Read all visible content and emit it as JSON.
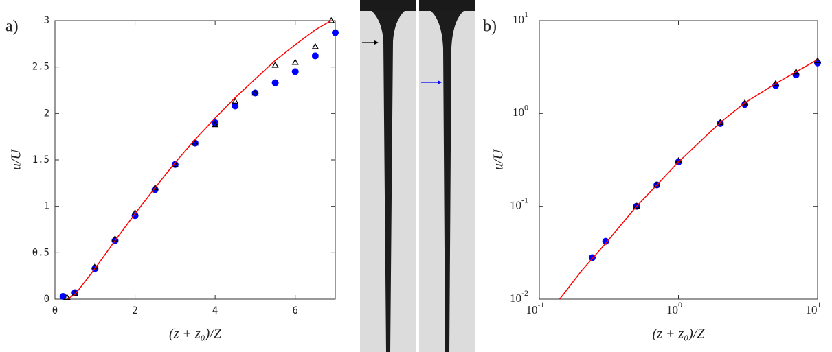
{
  "chart_data": [
    {
      "type": "scatter",
      "panel_label": "a)",
      "xlabel": "(z + z₀)/Z",
      "ylabel": "u/U",
      "xlim": [
        0,
        7
      ],
      "xticks": [
        0,
        2,
        4,
        6
      ],
      "ylim": [
        0,
        3
      ],
      "yticks": [
        0,
        0.5,
        1,
        1.5,
        2,
        2.5,
        3
      ],
      "log": false,
      "series": [
        {
          "color": "#0000ff",
          "marker": "circle",
          "x": [
            0.2,
            0.5,
            1,
            1.5,
            2,
            2.5,
            3,
            3.5,
            4,
            4.5,
            5,
            5.5,
            6,
            6.5,
            7
          ],
          "values": [
            0.03,
            0.07,
            0.33,
            0.63,
            0.9,
            1.18,
            1.45,
            1.68,
            1.9,
            2.08,
            2.22,
            2.33,
            2.45,
            2.62,
            2.87
          ]
        },
        {
          "color": "#000000",
          "marker": "triangle",
          "x": [
            0.3,
            0.5,
            1,
            1.5,
            2,
            2.5,
            3,
            3.5,
            4,
            4.5,
            5,
            5.5,
            6,
            6.5,
            6.9
          ],
          "values": [
            0.02,
            0.06,
            0.35,
            0.65,
            0.93,
            1.2,
            1.45,
            1.68,
            1.88,
            2.13,
            2.22,
            2.52,
            2.55,
            2.72,
            3.0
          ]
        },
        {
          "color": "#ff0000",
          "marker": "line",
          "x": [
            0.3,
            0.5,
            1,
            1.5,
            2,
            2.5,
            3,
            3.5,
            4,
            4.5,
            5,
            5.5,
            6,
            6.5,
            6.9
          ],
          "values": [
            0,
            0.05,
            0.33,
            0.63,
            0.92,
            1.2,
            1.47,
            1.72,
            1.95,
            2.17,
            2.37,
            2.57,
            2.74,
            2.9,
            3.0
          ]
        }
      ]
    },
    {
      "type": "scatter",
      "panel_label": "b)",
      "xlabel": "(z + z₀)/Z",
      "ylabel": "u/U",
      "xlim": [
        0.1,
        10
      ],
      "xticks": [
        {
          "value": 0.1,
          "label": "10",
          "exponent": "-1"
        },
        {
          "value": 1,
          "label": "10",
          "exponent": "0"
        },
        {
          "value": 10,
          "label": "10",
          "exponent": "1"
        }
      ],
      "ylim": [
        0.01,
        10
      ],
      "yticks": [
        {
          "value": 0.01,
          "label": "10",
          "exponent": "-2"
        },
        {
          "value": 0.1,
          "label": "10",
          "exponent": "-1"
        },
        {
          "value": 1,
          "label": "10",
          "exponent": "0"
        },
        {
          "value": 10,
          "label": "10",
          "exponent": "1"
        }
      ],
      "log": true,
      "series": [
        {
          "color": "#0000ff",
          "marker": "circle",
          "x": [
            0.24,
            0.3,
            0.5,
            0.7,
            1,
            2,
            3,
            5,
            7,
            10
          ],
          "values": [
            0.028,
            0.042,
            0.1,
            0.17,
            0.3,
            0.78,
            1.25,
            2.0,
            2.6,
            3.5
          ]
        },
        {
          "color": "#000000",
          "marker": "triangle",
          "x": [
            0.5,
            0.7,
            1,
            2,
            3,
            5,
            7,
            10
          ],
          "values": [
            0.1,
            0.17,
            0.31,
            0.8,
            1.3,
            2.1,
            2.8,
            3.7
          ]
        },
        {
          "color": "#ff0000",
          "marker": "line",
          "x": [
            0.14,
            0.2,
            0.3,
            0.5,
            0.7,
            1,
            2,
            3,
            5,
            7,
            10
          ],
          "values": [
            0.01,
            0.02,
            0.04,
            0.1,
            0.17,
            0.3,
            0.8,
            1.3,
            2.1,
            2.8,
            3.8
          ]
        }
      ]
    }
  ]
}
